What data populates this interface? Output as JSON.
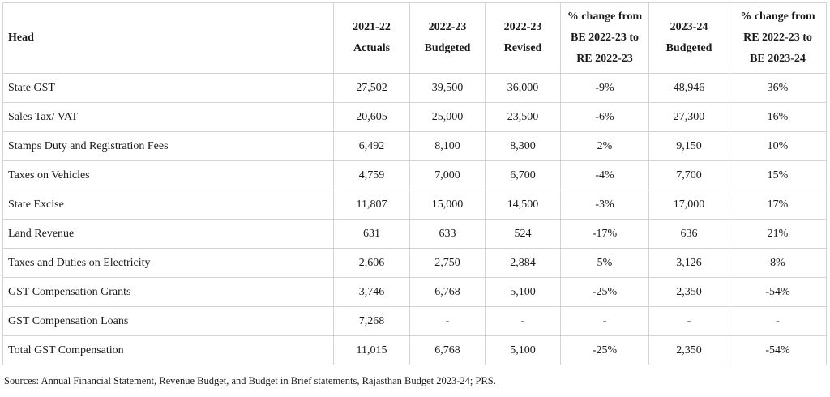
{
  "table": {
    "columns": [
      {
        "lines": [
          "Head"
        ]
      },
      {
        "lines": [
          "2021-22",
          "Actuals"
        ]
      },
      {
        "lines": [
          "2022-23",
          "Budgeted"
        ]
      },
      {
        "lines": [
          "2022-23",
          "Revised"
        ]
      },
      {
        "lines": [
          "% change from",
          "BE 2022-23 to",
          "RE 2022-23"
        ]
      },
      {
        "lines": [
          "2023-24",
          "Budgeted"
        ]
      },
      {
        "lines": [
          "% change from",
          "RE 2022-23 to",
          "BE 2023-24"
        ]
      }
    ],
    "rows": [
      [
        "State GST",
        "27,502",
        "39,500",
        "36,000",
        "-9%",
        "48,946",
        "36%"
      ],
      [
        "Sales Tax/ VAT",
        "20,605",
        "25,000",
        "23,500",
        "-6%",
        "27,300",
        "16%"
      ],
      [
        "Stamps Duty and Registration Fees",
        "6,492",
        "8,100",
        "8,300",
        "2%",
        "9,150",
        "10%"
      ],
      [
        "Taxes on Vehicles",
        "4,759",
        "7,000",
        "6,700",
        "-4%",
        "7,700",
        "15%"
      ],
      [
        "State Excise",
        "11,807",
        "15,000",
        "14,500",
        "-3%",
        "17,000",
        "17%"
      ],
      [
        "Land Revenue",
        "631",
        "633",
        "524",
        "-17%",
        "636",
        "21%"
      ],
      [
        "Taxes and Duties on Electricity",
        "2,606",
        "2,750",
        "2,884",
        "5%",
        "3,126",
        "8%"
      ],
      [
        "GST Compensation Grants",
        "3,746",
        "6,768",
        "5,100",
        "-25%",
        "2,350",
        "-54%"
      ],
      [
        "GST Compensation Loans",
        "7,268",
        "-",
        "-",
        "-",
        "-",
        "-"
      ],
      [
        "Total GST Compensation",
        "11,015",
        "6,768",
        "5,100",
        "-25%",
        "2,350",
        "-54%"
      ]
    ]
  },
  "source_note": "Sources: Annual Financial Statement, Revenue Budget, and Budget in Brief statements, Rajasthan Budget 2023-24; PRS."
}
